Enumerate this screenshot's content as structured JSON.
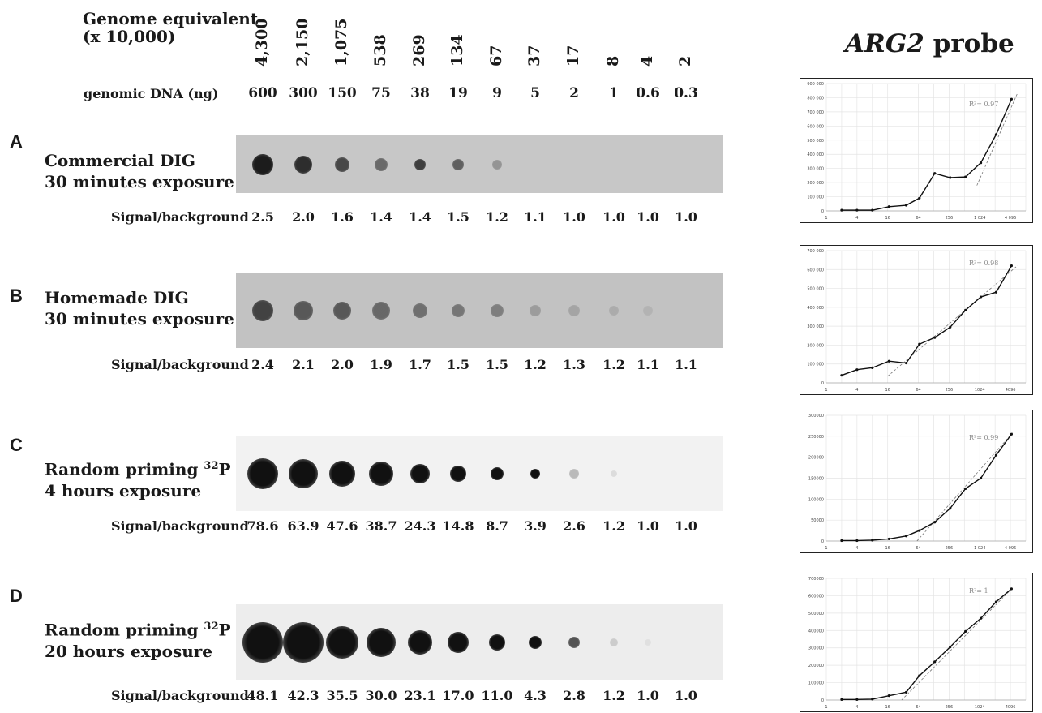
{
  "header": {
    "genome_label": "Genome equivalent\n(x 10,000)",
    "genome_values": [
      "4,300",
      "2,150",
      "1,075",
      "538",
      "269",
      "134",
      "67",
      "37",
      "17",
      "8",
      "4",
      "2"
    ],
    "dna_label": "genomic DNA (ng)",
    "dna_values": [
      "600",
      "300",
      "150",
      "75",
      "38",
      "19",
      "9",
      "5",
      "2",
      "1",
      "0.6",
      "0.3"
    ]
  },
  "probe": {
    "name": "ARG2",
    "suffix": " probe"
  },
  "panels": [
    {
      "letter": "A",
      "line1": "Commercial DIG",
      "line2": "30 minutes exposure",
      "sup": "",
      "signal_label": "Signal/background",
      "signal": [
        "2.5",
        "2.0",
        "1.6",
        "1.4",
        "1.4",
        "1.5",
        "1.2",
        "1.1",
        "1.0",
        "1.0",
        "1.0",
        "1.0"
      ]
    },
    {
      "letter": "B",
      "line1": "Homemade DIG",
      "line2": "30 minutes exposure",
      "sup": "",
      "signal_label": "Signal/background",
      "signal": [
        "2.4",
        "2.1",
        "2.0",
        "1.9",
        "1.7",
        "1.5",
        "1.5",
        "1.2",
        "1.3",
        "1.2",
        "1.1",
        "1.1"
      ]
    },
    {
      "letter": "C",
      "line1": "Random priming ",
      "sup": "32",
      "line1b": "P",
      "line2": "4 hours exposure",
      "signal_label": "Signal/background",
      "signal": [
        "78.6",
        "63.9",
        "47.6",
        "38.7",
        "24.3",
        "14.8",
        "8.7",
        "3.9",
        "2.6",
        "1.2",
        "1.0",
        "1.0"
      ]
    },
    {
      "letter": "D",
      "line1": "Random priming ",
      "sup": "32",
      "line1b": "P",
      "line2": "20 hours exposure",
      "signal_label": "Signal/background",
      "signal": [
        "48.1",
        "42.3",
        "35.5",
        "30.0",
        "23.1",
        "17.0",
        "11.0",
        "4.3",
        "2.8",
        "1.2",
        "1.0",
        "1.0"
      ]
    }
  ],
  "chart_data": [
    {
      "type": "line",
      "panel": "A",
      "x_scale": "log2",
      "x_ticks": [
        "1",
        "4",
        "16",
        "64",
        "256",
        "1 024",
        "4 096"
      ],
      "y_ticks": [
        "0",
        "100 000",
        "200 000",
        "300 000",
        "400 000",
        "500 000",
        "600 000",
        "700 000",
        "800 000",
        "900 000"
      ],
      "ylim": [
        0,
        900000
      ],
      "r2_label": "R²= 0.97",
      "x": [
        2,
        4,
        8,
        17,
        37,
        67,
        134,
        269,
        538,
        1075,
        2150,
        4300
      ],
      "y": [
        5000,
        5000,
        5000,
        30000,
        40000,
        90000,
        265000,
        235000,
        240000,
        340000,
        540000,
        790000
      ],
      "trend": [
        [
          900,
          180000
        ],
        [
          5600,
          830000
        ]
      ]
    },
    {
      "type": "line",
      "panel": "B",
      "x_scale": "log2",
      "x_ticks": [
        "1",
        "4",
        "16",
        "64",
        "256",
        "1024",
        "4096"
      ],
      "y_ticks": [
        "0",
        "100 000",
        "200 000",
        "300 000",
        "400 000",
        "500 000",
        "600 000",
        "700 000"
      ],
      "ylim": [
        0,
        700000
      ],
      "r2_label": "R²= 0.98",
      "x": [
        2,
        4,
        8,
        17,
        37,
        67,
        134,
        269,
        538,
        1075,
        2150,
        4300
      ],
      "y": [
        40000,
        70000,
        80000,
        115000,
        105000,
        205000,
        240000,
        295000,
        385000,
        455000,
        480000,
        620000
      ],
      "trend": [
        [
          16,
          35000
        ],
        [
          5600,
          620000
        ]
      ]
    },
    {
      "type": "line",
      "panel": "C",
      "x_scale": "log2",
      "x_ticks": [
        "1",
        "4",
        "16",
        "64",
        "256",
        "1 024",
        "4 096"
      ],
      "y_ticks": [
        "0",
        "50000",
        "100000",
        "150000",
        "200000",
        "250000",
        "300000"
      ],
      "ylim": [
        0,
        300000
      ],
      "r2_label": "R²= 0.99",
      "x": [
        2,
        4,
        8,
        17,
        37,
        67,
        134,
        269,
        538,
        1075,
        2150,
        4300
      ],
      "y": [
        1000,
        1000,
        2000,
        5000,
        12000,
        25000,
        45000,
        78000,
        125000,
        150000,
        205000,
        255000
      ],
      "trend": [
        [
          60,
          0
        ],
        [
          4500,
          258000
        ]
      ]
    },
    {
      "type": "line",
      "panel": "D",
      "x_scale": "log2",
      "x_ticks": [
        "1",
        "4",
        "16",
        "64",
        "256",
        "1024",
        "4096"
      ],
      "y_ticks": [
        "0",
        "100000",
        "200000",
        "300000",
        "400000",
        "500000",
        "600000",
        "700000"
      ],
      "ylim": [
        0,
        700000
      ],
      "r2_label": "R²= 1",
      "x": [
        2,
        4,
        8,
        17,
        37,
        67,
        134,
        269,
        538,
        1075,
        2150,
        4300
      ],
      "y": [
        3000,
        3000,
        5000,
        25000,
        45000,
        140000,
        220000,
        305000,
        395000,
        470000,
        565000,
        640000
      ],
      "trend": [
        [
          30,
          0
        ],
        [
          4500,
          645000
        ]
      ]
    }
  ],
  "blots": [
    {
      "bg": "#c7c7c7",
      "dot_color": "#1c1c1c",
      "sizes": [
        13,
        11,
        9,
        8,
        7,
        7,
        6,
        0,
        0,
        0,
        0,
        0
      ],
      "opacity": [
        1,
        0.9,
        0.75,
        0.55,
        0.8,
        0.6,
        0.3,
        0,
        0,
        0,
        0,
        0
      ]
    },
    {
      "bg": "#c2c2c2",
      "dot_color": "#2b2b2b",
      "sizes": [
        13,
        12,
        11,
        11,
        9,
        8,
        8,
        7,
        7,
        6,
        6,
        0
      ],
      "opacity": [
        0.85,
        0.7,
        0.7,
        0.6,
        0.55,
        0.5,
        0.45,
        0.25,
        0.2,
        0.15,
        0.1,
        0
      ]
    },
    {
      "bg": "#f2f2f2",
      "dot_color": "#111111",
      "sizes": [
        19,
        18,
        16,
        15,
        12,
        10,
        8,
        6,
        6,
        4,
        0,
        0
      ],
      "opacity": [
        1,
        1,
        1,
        1,
        1,
        1,
        1,
        1,
        0.25,
        0.1,
        0,
        0
      ]
    },
    {
      "bg": "#ededed",
      "dot_color": "#111111",
      "sizes": [
        25,
        25,
        20,
        18,
        15,
        13,
        10,
        8,
        7,
        5,
        4,
        0
      ],
      "opacity": [
        1,
        1,
        1,
        1,
        1,
        1,
        1,
        1,
        0.7,
        0.15,
        0.06,
        0
      ]
    }
  ]
}
